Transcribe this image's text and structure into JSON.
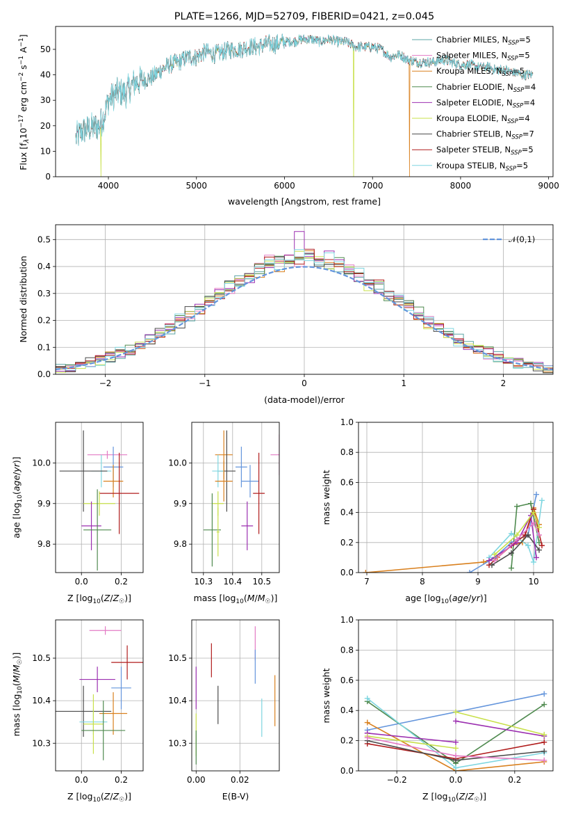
{
  "chart_data": [
    {
      "id": "spectrum",
      "type": "line",
      "title": "PLATE=1266, MJD=52709, FIBERID=0421, z=0.045",
      "xlabel": "wavelength [Angstrom, rest frame]",
      "ylabel": "Flux [f_λ10^-17 erg cm^-2 s^-1 A^-1]",
      "xlim": [
        3400,
        9050
      ],
      "ylim": [
        0,
        59
      ],
      "xticks": [
        4000,
        5000,
        6000,
        7000,
        8000,
        9000
      ],
      "yticks": [
        0,
        10,
        20,
        30,
        40,
        50
      ],
      "legend_position": "upper-right",
      "spectrum_shape": {
        "x": [
          3630,
          3700,
          3800,
          3900,
          3950,
          4000,
          4100,
          4200,
          4300,
          4400,
          4500,
          4600,
          4700,
          4800,
          4900,
          5000,
          5100,
          5200,
          5300,
          5400,
          5500,
          5600,
          5700,
          5800,
          5900,
          6000,
          6100,
          6200,
          6300,
          6400,
          6500,
          6600,
          6700,
          6800,
          6900,
          7000,
          7100,
          7200,
          7300,
          7400,
          7500,
          7600,
          7700,
          7800,
          7900,
          8000,
          8100,
          8200,
          8300,
          8400,
          8500,
          8600,
          8700,
          8820
        ],
        "y": [
          15,
          18,
          19,
          20,
          24,
          30,
          33,
          33,
          37,
          38,
          39,
          42,
          44,
          45,
          47,
          47,
          49,
          48,
          49,
          50,
          50,
          51,
          51,
          52,
          52,
          53,
          53,
          54,
          54,
          53,
          54,
          53,
          53,
          51,
          51,
          51,
          50,
          47,
          48,
          46,
          45,
          45,
          45,
          46,
          45,
          44,
          44,
          43,
          43,
          42,
          42,
          41,
          40,
          40
        ]
      },
      "dips": [
        {
          "series": "Kroupa ELODIE, N_SSP=4",
          "x": 3915,
          "y": 0
        },
        {
          "series": "Kroupa ELODIE, N_SSP=4",
          "x": 6785,
          "y": 0
        },
        {
          "series": "Kroupa MILES, N_SSP=5",
          "x": 7420,
          "y": 0
        }
      ],
      "series": [
        {
          "name": "Chabrier MILES, N_SSP=5",
          "label_main": "Chabrier MILES, N",
          "label_sub": "SSP",
          "label_tail": "=5",
          "color": "#5ba5a5"
        },
        {
          "name": "Salpeter MILES, N_SSP=5",
          "label_main": "Salpeter MILES, N",
          "label_sub": "SSP",
          "label_tail": "=5",
          "color": "#e37ac4"
        },
        {
          "name": "Kroupa MILES, N_SSP=5",
          "label_main": "Kroupa MILES, N",
          "label_sub": "SSP",
          "label_tail": "=5",
          "color": "#d9801e"
        },
        {
          "name": "Chabrier ELODIE, N_SSP=4",
          "label_main": "Chabrier ELODIE, N",
          "label_sub": "SSP",
          "label_tail": "=4",
          "color": "#4f8a4f"
        },
        {
          "name": "Salpeter ELODIE, N_SSP=4",
          "label_main": "Salpeter ELODIE, N",
          "label_sub": "SSP",
          "label_tail": "=4",
          "color": "#9b2fb0"
        },
        {
          "name": "Kroupa ELODIE, N_SSP=4",
          "label_main": "Kroupa ELODIE, N",
          "label_sub": "SSP",
          "label_tail": "=4",
          "color": "#c8e04a"
        },
        {
          "name": "Chabrier STELIB, N_SSP=7",
          "label_main": "Chabrier STELIB, N",
          "label_sub": "SSP",
          "label_tail": "=7",
          "color": "#4a4a4a"
        },
        {
          "name": "Salpeter STELIB, N_SSP=5",
          "label_main": "Salpeter STELIB, N",
          "label_sub": "SSP",
          "label_tail": "=5",
          "color": "#b01c1c"
        },
        {
          "name": "Kroupa STELIB, N_SSP=5",
          "label_main": "Kroupa STELIB, N",
          "label_sub": "SSP",
          "label_tail": "=5",
          "color": "#7fd6e0"
        }
      ]
    },
    {
      "id": "residuals",
      "type": "histogram",
      "xlabel": "(data-model)/error",
      "ylabel": "Normed distribution",
      "xlim": [
        -2.5,
        2.5
      ],
      "ylim": [
        0,
        0.555
      ],
      "xticks": [
        -2,
        -1,
        0,
        1,
        2
      ],
      "yticks": [
        0.0,
        0.1,
        0.2,
        0.3,
        0.4,
        0.5
      ],
      "bin_width": 0.1,
      "legend": {
        "label": "𝒩(0,1)",
        "position": "upper-right",
        "color": "#6495dc"
      },
      "series_colors": [
        "#5ba5a5",
        "#e37ac4",
        "#d9801e",
        "#4f8a4f",
        "#9b2fb0",
        "#c8e04a",
        "#4a4a4a",
        "#b01c1c",
        "#7fd6e0"
      ],
      "highlight": {
        "Salpeter ELODIE, N_SSP=4": {
          "x": -0.1,
          "y": 0.53
        },
        "Kroupa ELODIE, N_SSP=4": {
          "x": 0.6,
          "y": 0.31
        }
      }
    },
    {
      "id": "age-vs-Z",
      "type": "errorbar",
      "xlabel": "Z [log10(Z/Z☉)]",
      "ylabel": "age  [log10(age/yr)]",
      "xlim": [
        -0.13,
        0.31
      ],
      "ylim": [
        9.73,
        10.1
      ],
      "xticks": [
        0.0,
        0.2
      ],
      "yticks": [
        9.8,
        9.9,
        10.0
      ],
      "points": [
        {
          "x": 0.13,
          "y": 10.02,
          "xerr": 0.1,
          "yerr": 0.01,
          "color": "#e37ac4"
        },
        {
          "x": 0.1,
          "y": 9.98,
          "xerr": 0.05,
          "yerr": 0.04,
          "color": "#7fd6e0"
        },
        {
          "x": 0.16,
          "y": 9.99,
          "xerr": 0.05,
          "yerr": 0.05,
          "color": "#6495dc"
        },
        {
          "x": 0.01,
          "y": 9.98,
          "xerr": 0.12,
          "yerr": 0.1,
          "color": "#4a4a4a"
        },
        {
          "x": 0.16,
          "y": 9.955,
          "xerr": 0.05,
          "yerr": 0.04,
          "color": "#d9801e"
        },
        {
          "x": 0.19,
          "y": 9.925,
          "xerr": 0.1,
          "yerr": 0.1,
          "color": "#b01c1c"
        },
        {
          "x": 0.09,
          "y": 9.9,
          "xerr": 0.08,
          "yerr": 0.03,
          "color": "#c8e04a"
        },
        {
          "x": 0.05,
          "y": 9.845,
          "xerr": 0.05,
          "yerr": 0.06,
          "color": "#9b2fb0"
        },
        {
          "x": 0.08,
          "y": 9.835,
          "xerr": 0.07,
          "yerr": 0.1,
          "color": "#4f8a4f"
        }
      ]
    },
    {
      "id": "age-vs-mass",
      "type": "errorbar",
      "xlabel": "mass [log10(M/M☉)]",
      "ylabel": "",
      "xlim": [
        10.26,
        10.56
      ],
      "ylim": [
        9.73,
        10.1
      ],
      "xticks": [
        10.3,
        10.4,
        10.5
      ],
      "yticks": [
        9.8,
        9.9,
        10.0
      ],
      "points": [
        {
          "x": 10.56,
          "y": 10.02,
          "xerr": 0.03,
          "yerr": 0.05,
          "color": "#e37ac4"
        },
        {
          "x": 10.37,
          "y": 10.02,
          "xerr": 0.03,
          "yerr": 0.06,
          "color": "#d9801e"
        },
        {
          "x": 10.38,
          "y": 9.98,
          "xerr": 0.03,
          "yerr": 0.1,
          "color": "#4a4a4a"
        },
        {
          "x": 10.35,
          "y": 9.98,
          "xerr": 0.02,
          "yerr": 0.04,
          "color": "#7fd6e0"
        },
        {
          "x": 10.43,
          "y": 9.99,
          "xerr": 0.02,
          "yerr": 0.05,
          "color": "#6495dc"
        },
        {
          "x": 10.46,
          "y": 9.955,
          "xerr": 0.03,
          "yerr": 0.04,
          "color": "#6495dc"
        },
        {
          "x": 10.37,
          "y": 9.955,
          "xerr": 0.03,
          "yerr": 0.05,
          "color": "#d9801e"
        },
        {
          "x": 10.49,
          "y": 9.925,
          "xerr": 0.02,
          "yerr": 0.1,
          "color": "#b01c1c"
        },
        {
          "x": 10.35,
          "y": 9.9,
          "xerr": 0.02,
          "yerr": 0.03,
          "color": "#c8e04a"
        },
        {
          "x": 10.45,
          "y": 9.845,
          "xerr": 0.02,
          "yerr": 0.06,
          "color": "#9b2fb0"
        },
        {
          "x": 10.33,
          "y": 9.835,
          "xerr": 0.03,
          "yerr": 0.09,
          "color": "#4f8a4f"
        },
        {
          "x": 10.35,
          "y": 9.83,
          "xerr": 0.005,
          "yerr": 0.06,
          "color": "#c8e04a"
        }
      ]
    },
    {
      "id": "mass-weight-vs-age",
      "type": "line",
      "xlabel": "age  [log10(age/yr)]",
      "ylabel": "mass weight",
      "xlim": [
        6.85,
        10.35
      ],
      "ylim": [
        0,
        1.0
      ],
      "xticks": [
        7,
        8,
        9,
        10
      ],
      "yticks": [
        0.0,
        0.2,
        0.4,
        0.6,
        0.8,
        1.0
      ],
      "series": [
        {
          "color": "#d9801e",
          "points": [
            [
              6.98,
              0.0
            ],
            [
              9.1,
              0.07
            ],
            [
              9.35,
              0.1
            ],
            [
              9.6,
              0.18
            ],
            [
              9.8,
              0.2
            ],
            [
              10.0,
              0.43
            ],
            [
              10.1,
              0.32
            ]
          ]
        },
        {
          "color": "#6495dc",
          "points": [
            [
              8.85,
              0.0
            ],
            [
              9.3,
              0.1
            ],
            [
              9.6,
              0.2
            ],
            [
              9.9,
              0.25
            ],
            [
              10.05,
              0.52
            ]
          ]
        },
        {
          "color": "#4f8a4f",
          "points": [
            [
              9.6,
              0.03
            ],
            [
              9.7,
              0.44
            ],
            [
              9.95,
              0.46
            ],
            [
              10.1,
              0.2
            ]
          ]
        },
        {
          "color": "#7fd6e0",
          "points": [
            [
              9.2,
              0.1
            ],
            [
              9.6,
              0.26
            ],
            [
              9.9,
              0.18
            ],
            [
              10.0,
              0.07
            ],
            [
              10.15,
              0.48
            ]
          ]
        },
        {
          "color": "#b01c1c",
          "points": [
            [
              9.2,
              0.05
            ],
            [
              9.6,
              0.18
            ],
            [
              9.85,
              0.25
            ],
            [
              10.0,
              0.42
            ],
            [
              10.15,
              0.18
            ]
          ]
        },
        {
          "color": "#4a4a4a",
          "points": [
            [
              9.25,
              0.05
            ],
            [
              9.6,
              0.13
            ],
            [
              9.9,
              0.25
            ],
            [
              10.1,
              0.15
            ]
          ]
        },
        {
          "color": "#9b2fb0",
          "points": [
            [
              9.2,
              0.08
            ],
            [
              9.7,
              0.2
            ],
            [
              9.95,
              0.38
            ],
            [
              10.05,
              0.1
            ]
          ]
        },
        {
          "color": "#c8e04a",
          "points": [
            [
              9.3,
              0.12
            ],
            [
              9.7,
              0.25
            ],
            [
              10.0,
              0.4
            ],
            [
              10.1,
              0.3
            ]
          ]
        },
        {
          "color": "#e37ac4",
          "points": [
            [
              9.3,
              0.08
            ],
            [
              9.7,
              0.22
            ],
            [
              10.0,
              0.33
            ],
            [
              10.1,
              0.25
            ]
          ]
        }
      ]
    },
    {
      "id": "mass-vs-Z",
      "type": "errorbar",
      "xlabel": "Z [log10(Z/Z☉)]",
      "ylabel": "mass [log10(M/M☉)]",
      "xlim": [
        -0.13,
        0.31
      ],
      "ylim": [
        10.235,
        10.59
      ],
      "xticks": [
        0.0,
        0.2
      ],
      "yticks": [
        10.3,
        10.4,
        10.5
      ],
      "points": [
        {
          "x": 0.12,
          "y": 10.565,
          "xerr": 0.08,
          "yerr": 0.01,
          "color": "#e37ac4"
        },
        {
          "x": 0.23,
          "y": 10.49,
          "xerr": 0.08,
          "yerr": 0.04,
          "color": "#b01c1c"
        },
        {
          "x": 0.08,
          "y": 10.45,
          "xerr": 0.09,
          "yerr": 0.03,
          "color": "#9b2fb0"
        },
        {
          "x": 0.2,
          "y": 10.43,
          "xerr": 0.05,
          "yerr": 0.05,
          "color": "#6495dc"
        },
        {
          "x": 0.01,
          "y": 10.375,
          "xerr": 0.14,
          "yerr": 0.06,
          "color": "#4a4a4a"
        },
        {
          "x": 0.16,
          "y": 10.37,
          "xerr": 0.07,
          "yerr": 0.05,
          "color": "#d9801e"
        },
        {
          "x": 0.06,
          "y": 10.35,
          "xerr": 0.07,
          "yerr": 0.03,
          "color": "#7fd6e0"
        },
        {
          "x": 0.06,
          "y": 10.345,
          "xerr": 0.05,
          "yerr": 0.07,
          "color": "#c8e04a"
        },
        {
          "x": 0.11,
          "y": 10.33,
          "xerr": 0.11,
          "yerr": 0.07,
          "color": "#4f8a4f"
        }
      ]
    },
    {
      "id": "mass-vs-EBV",
      "type": "errorbar",
      "xlabel": "E(B-V)",
      "ylabel": "",
      "xlim": [
        -0.002,
        0.038
      ],
      "ylim": [
        10.235,
        10.59
      ],
      "xticks": [
        0.0,
        0.02
      ],
      "yticks": [
        10.3,
        10.4,
        10.5
      ],
      "points": [
        {
          "x": 0.0,
          "y": 10.43,
          "xerr": 0.0,
          "yerr": 0.05,
          "color": "#9b2fb0"
        },
        {
          "x": 0.0,
          "y": 10.32,
          "xerr": 0.0,
          "yerr": 0.05,
          "color": "#c8e04a"
        },
        {
          "x": 0.0,
          "y": 10.29,
          "xerr": 0.0,
          "yerr": 0.04,
          "color": "#4f8a4f"
        },
        {
          "x": 0.007,
          "y": 10.495,
          "xerr": 0.0,
          "yerr": 0.04,
          "color": "#b01c1c"
        },
        {
          "x": 0.01,
          "y": 10.39,
          "xerr": 0.0,
          "yerr": 0.045,
          "color": "#4a4a4a"
        },
        {
          "x": 0.027,
          "y": 10.535,
          "xerr": 0.0,
          "yerr": 0.04,
          "color": "#e37ac4"
        },
        {
          "x": 0.027,
          "y": 10.48,
          "xerr": 0.0,
          "yerr": 0.04,
          "color": "#6495dc"
        },
        {
          "x": 0.03,
          "y": 10.36,
          "xerr": 0.0,
          "yerr": 0.045,
          "color": "#7fd6e0"
        },
        {
          "x": 0.036,
          "y": 10.4,
          "xerr": 0.0,
          "yerr": 0.06,
          "color": "#d9801e"
        }
      ]
    },
    {
      "id": "mass-weight-vs-Z",
      "type": "line",
      "xlabel": "Z [log10(Z/Z☉)]",
      "ylabel": "mass weight",
      "xlim": [
        -0.33,
        0.33
      ],
      "ylim": [
        0,
        1.0
      ],
      "xticks": [
        -0.2,
        0.0,
        0.2
      ],
      "yticks": [
        0.0,
        0.2,
        0.4,
        0.6,
        0.8,
        1.0
      ],
      "series": [
        {
          "color": "#6495dc",
          "points": [
            [
              -0.3,
              0.27
            ],
            [
              0.3,
              0.51
            ]
          ]
        },
        {
          "color": "#d9801e",
          "points": [
            [
              -0.3,
              0.32
            ],
            [
              0.0,
              0.0
            ],
            [
              0.3,
              0.06
            ]
          ]
        },
        {
          "color": "#4f8a4f",
          "points": [
            [
              -0.3,
              0.46
            ],
            [
              0.0,
              0.05
            ],
            [
              0.3,
              0.44
            ]
          ]
        },
        {
          "color": "#7fd6e0",
          "points": [
            [
              -0.3,
              0.48
            ],
            [
              0.0,
              0.02
            ],
            [
              0.3,
              0.12
            ]
          ]
        },
        {
          "color": "#b01c1c",
          "points": [
            [
              -0.3,
              0.18
            ],
            [
              0.0,
              0.08
            ],
            [
              0.3,
              0.19
            ]
          ]
        },
        {
          "color": "#4a4a4a",
          "points": [
            [
              -0.3,
              0.2
            ],
            [
              0.0,
              0.07
            ],
            [
              0.3,
              0.13
            ]
          ]
        },
        {
          "color": "#9b2fb0",
          "points": [
            [
              -0.3,
              0.25
            ],
            [
              0.0,
              0.19
            ]
          ]
        },
        {
          "color": "#9b2fb0",
          "points": [
            [
              0.0,
              0.33
            ],
            [
              0.3,
              0.23
            ]
          ]
        },
        {
          "color": "#c8e04a",
          "points": [
            [
              -0.3,
              0.23
            ],
            [
              0.0,
              0.15
            ]
          ]
        },
        {
          "color": "#c8e04a",
          "points": [
            [
              0.0,
              0.39
            ],
            [
              0.3,
              0.24
            ]
          ]
        },
        {
          "color": "#e37ac4",
          "points": [
            [
              -0.3,
              0.22
            ],
            [
              0.0,
              0.1
            ],
            [
              0.3,
              0.07
            ]
          ]
        }
      ]
    }
  ]
}
